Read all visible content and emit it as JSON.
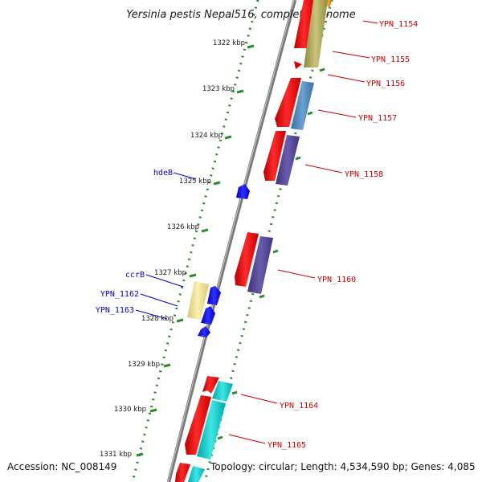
{
  "title": "Yersinia pestis Nepal516, complete genome",
  "footer": {
    "accession": "Accession: NC_008149",
    "topology": "Topology: circular; Length: 4,534,590 bp; Genes: 4,085"
  },
  "kbp_labels": [
    "1322 kbp",
    "1323 kbp",
    "1324 kbp",
    "1325 kbp",
    "1326 kbp",
    "1327 kbp",
    "1328 kbp",
    "1329 kbp",
    "1330 kbp",
    "1331 kbp"
  ],
  "labels_right": [
    "YPN_1154",
    "YPN_1155",
    "YPN_1156",
    "YPN_1157",
    "YPN_1158",
    "YPN_1160",
    "YPN_1164",
    "YPN_1165"
  ],
  "labels_left": [
    "hdeB",
    "ccrB",
    "YPN_1162",
    "YPN_1163"
  ],
  "colors": {
    "backbone": "#8a8a8a",
    "ticks": "#2a8a2a",
    "gene_forward": "#ee0000",
    "label_right": "#cc0000",
    "label_left": "#0000cc",
    "small_gene": "#0a0aee"
  }
}
